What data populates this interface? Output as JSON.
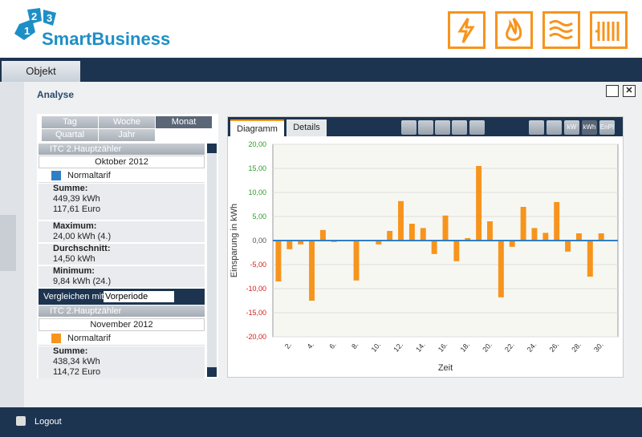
{
  "header": {
    "logo_numbers": [
      "1",
      "2",
      "3"
    ],
    "logo_text": "SmartBusiness"
  },
  "nav": {
    "tab": "Objekt"
  },
  "section": {
    "title": "Analyse"
  },
  "periods": [
    "Tag",
    "Woche",
    "Monat",
    "Quartal",
    "Jahr"
  ],
  "meters": [
    {
      "title": "ITC 2.Hauptzähler",
      "period": "Oktober 2012",
      "tariff": "Normaltarif",
      "stats": [
        {
          "label": "Summe:",
          "lines": [
            "449,39 kWh",
            "117,61 Euro"
          ]
        },
        {
          "label": "Maximum:",
          "lines": [
            "24,00 kWh (4.)"
          ]
        },
        {
          "label": "Durchschnitt:",
          "lines": [
            "14,50 kWh"
          ]
        },
        {
          "label": "Minimum:",
          "lines": [
            "9,84 kWh (24.)"
          ]
        }
      ]
    },
    {
      "title": "ITC 2.Hauptzähler",
      "period": "November 2012",
      "tariff": "Normaltarif",
      "stats": [
        {
          "label": "Summe:",
          "lines": [
            "438,34 kWh",
            "114,72 Euro"
          ]
        }
      ]
    }
  ],
  "compare": {
    "label": "Vergleichen mit:",
    "value": "Vorperiode"
  },
  "chart_tabs": [
    "Diagramm",
    "Details"
  ],
  "toolbar": [
    "kW",
    "kWh",
    "EnPI"
  ],
  "footer": {
    "logout": "Logout"
  },
  "chart_data": {
    "type": "bar",
    "y_label": "Einsparung in kWh",
    "x_label": "Zeit",
    "color": "#f7941d",
    "grid": true,
    "categories": [
      null,
      "2.",
      null,
      "4.",
      null,
      "6.",
      null,
      "8.",
      null,
      "10.",
      null,
      "12.",
      null,
      "14.",
      null,
      "16.",
      null,
      "18.",
      null,
      "20.",
      null,
      "22.",
      null,
      "24.",
      null,
      "26.",
      null,
      "28.",
      null,
      "30.",
      null
    ],
    "values": [
      -8.5,
      -1.8,
      -0.8,
      -12.5,
      2.2,
      -0.3,
      0,
      -8.3,
      0,
      -0.8,
      2.0,
      8.2,
      3.5,
      2.6,
      -2.8,
      5.2,
      -4.3,
      0.5,
      15.5,
      4.0,
      -11.8,
      -1.3,
      7.0,
      2.6,
      1.6,
      8.0,
      -2.3,
      1.5,
      -7.5,
      1.5,
      null
    ],
    "ylim": [
      -20,
      20
    ],
    "yticks": [
      {
        "value": -20,
        "label": "-20,00"
      },
      {
        "value": -15,
        "label": "-15,00"
      },
      {
        "value": -10,
        "label": "-10,00"
      },
      {
        "value": -5,
        "label": "-5,00"
      },
      {
        "value": 0,
        "label": "0,00"
      },
      {
        "value": 5,
        "label": "5,00"
      },
      {
        "value": 10,
        "label": "10,00"
      },
      {
        "value": 15,
        "label": "15,00"
      },
      {
        "value": 20,
        "label": "20,00"
      }
    ]
  }
}
